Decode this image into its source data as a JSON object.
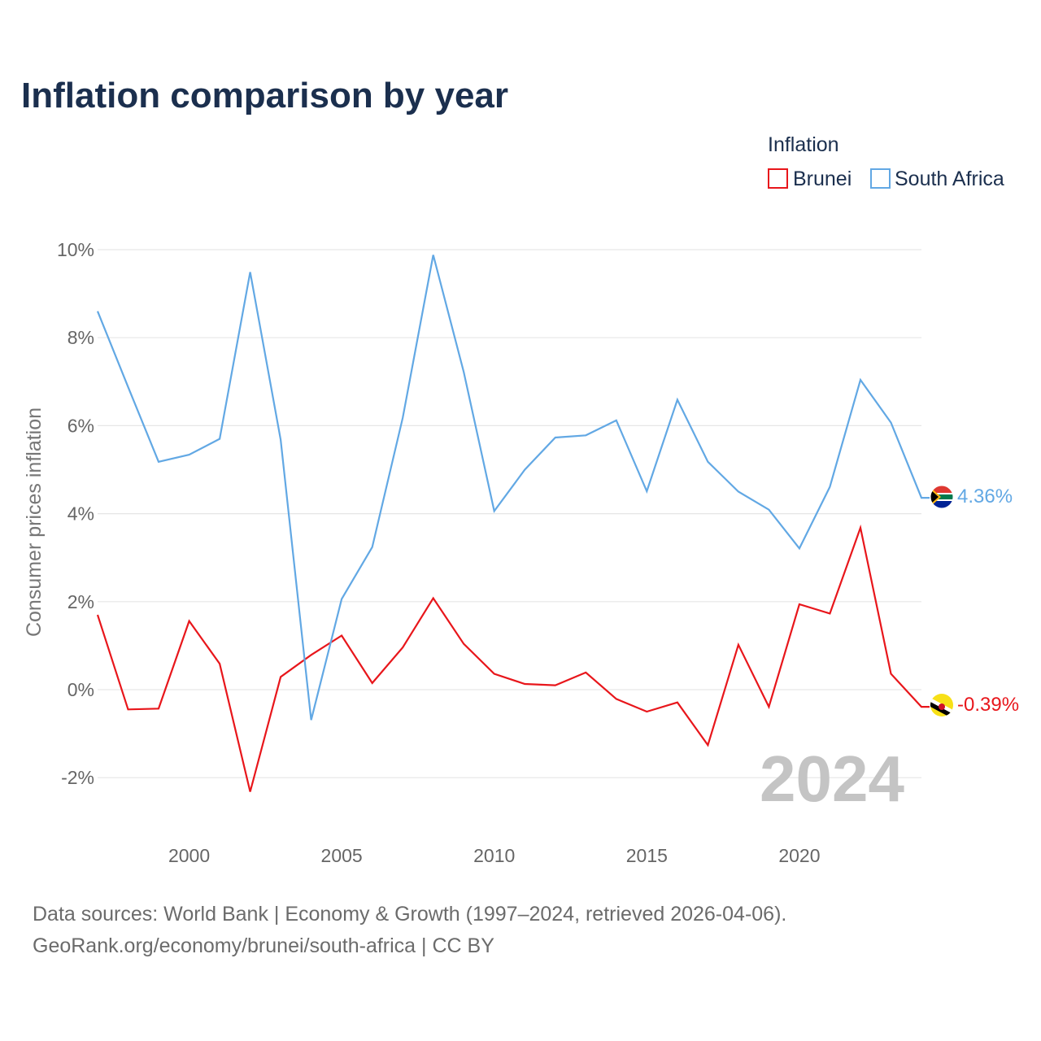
{
  "title": "Inflation comparison by year",
  "legend": {
    "title": "Inflation",
    "items": [
      {
        "label": "Brunei",
        "color": "#e8161b"
      },
      {
        "label": "South Africa",
        "color": "#62a8e4"
      }
    ]
  },
  "chart_data": {
    "type": "line",
    "title": "Inflation comparison by year",
    "xlabel": "",
    "ylabel": "Consumer prices inflation",
    "x": [
      1997,
      1998,
      1999,
      2000,
      2001,
      2002,
      2003,
      2004,
      2005,
      2006,
      2007,
      2008,
      2009,
      2010,
      2011,
      2012,
      2013,
      2014,
      2015,
      2016,
      2017,
      2018,
      2019,
      2020,
      2021,
      2022,
      2023,
      2024
    ],
    "xlim": [
      1997,
      2024
    ],
    "xticks": [
      2000,
      2005,
      2010,
      2015,
      2020
    ],
    "ylim": [
      -3,
      10.5
    ],
    "yticks": [
      -2,
      0,
      2,
      4,
      6,
      8,
      10
    ],
    "ytick_labels": [
      "-2%",
      "0%",
      "2%",
      "4%",
      "6%",
      "8%",
      "10%"
    ],
    "grid": true,
    "legend_position": "top-right",
    "series": [
      {
        "name": "Brunei",
        "color": "#e8161b",
        "values": [
          1.7,
          -0.45,
          -0.43,
          1.56,
          0.59,
          -2.32,
          0.29,
          0.79,
          1.23,
          0.15,
          0.96,
          2.08,
          1.04,
          0.36,
          0.13,
          0.1,
          0.39,
          -0.21,
          -0.5,
          -0.29,
          -1.26,
          1.02,
          -0.39,
          1.94,
          1.73,
          3.68,
          0.36,
          -0.39
        ],
        "end_label": "-0.39%"
      },
      {
        "name": "South Africa",
        "color": "#62a8e4",
        "values": [
          8.6,
          6.88,
          5.18,
          5.34,
          5.7,
          9.49,
          5.68,
          -0.69,
          2.06,
          3.24,
          6.18,
          9.88,
          7.22,
          4.06,
          5.0,
          5.73,
          5.78,
          6.12,
          4.51,
          6.59,
          5.18,
          4.5,
          4.09,
          3.21,
          4.61,
          7.04,
          6.07,
          4.36
        ],
        "end_label": "4.36%"
      }
    ],
    "annotation": "2024"
  },
  "source": {
    "line1": "Data sources: World Bank | Economy & Growth (1997–2024, retrieved 2026-04-06).",
    "line2": "GeoRank.org/economy/brunei/south-africa | CC BY"
  }
}
